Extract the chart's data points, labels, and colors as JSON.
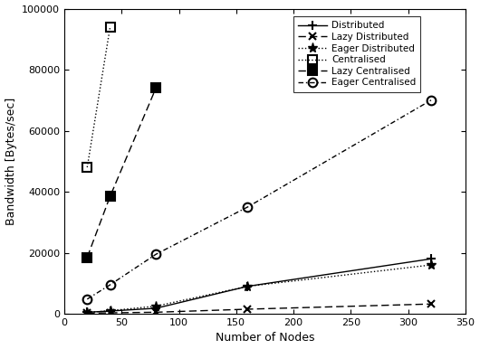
{
  "series": {
    "Distributed": {
      "x": [
        20,
        40,
        80,
        160,
        320
      ],
      "y": [
        500,
        900,
        1800,
        9000,
        18000
      ],
      "linestyle": "-",
      "marker": "+",
      "markersize": 7,
      "markeredgewidth": 1.5,
      "linewidth": 1.0,
      "dashes": null,
      "fillstyle": "full"
    },
    "Lazy Distributed": {
      "x": [
        20,
        40,
        80,
        160,
        320
      ],
      "y": [
        200,
        300,
        500,
        1500,
        3200
      ],
      "linestyle": "--",
      "marker": "x",
      "markersize": 6,
      "markeredgewidth": 1.5,
      "linewidth": 1.0,
      "dashes": [
        6,
        3
      ],
      "fillstyle": "full"
    },
    "Eager Distributed": {
      "x": [
        20,
        40,
        80,
        160,
        320
      ],
      "y": [
        400,
        1000,
        2500,
        9000,
        16000
      ],
      "linestyle": ":",
      "marker": "*",
      "markersize": 8,
      "markeredgewidth": 1.0,
      "linewidth": 1.0,
      "dashes": null,
      "fillstyle": "full"
    },
    "Centralised": {
      "x": [
        20,
        40
      ],
      "y": [
        48000,
        94000
      ],
      "linestyle": ":",
      "marker": "s",
      "markersize": 7,
      "markeredgewidth": 1.5,
      "linewidth": 1.0,
      "dashes": null,
      "fillstyle": "none"
    },
    "Lazy Centralised": {
      "x": [
        20,
        40,
        80
      ],
      "y": [
        18500,
        38500,
        74000
      ],
      "linestyle": "--",
      "marker": "s",
      "markersize": 7,
      "markeredgewidth": 1.5,
      "linewidth": 1.0,
      "dashes": [
        6,
        3
      ],
      "fillstyle": "full"
    },
    "Eager Centralised": {
      "x": [
        20,
        40,
        80,
        160,
        320
      ],
      "y": [
        4800,
        9500,
        19500,
        35000,
        70000
      ],
      "linestyle": "--",
      "marker": "o",
      "markersize": 7,
      "markeredgewidth": 1.5,
      "linewidth": 1.0,
      "dashes": [
        4,
        2,
        1,
        2
      ],
      "fillstyle": "none"
    }
  },
  "xlabel": "Number of Nodes",
  "ylabel": "Bandwidth [Bytes/sec]",
  "xlim": [
    0,
    350
  ],
  "ylim": [
    0,
    100000
  ],
  "yticks": [
    0,
    20000,
    40000,
    60000,
    80000,
    100000
  ],
  "xticks": [
    0,
    50,
    100,
    150,
    200,
    250,
    300,
    350
  ],
  "legend_names": [
    "Distributed",
    "Lazy Distributed",
    "Eager Distributed",
    "Centralised",
    "Lazy Centralised",
    "Eager Centralised"
  ]
}
